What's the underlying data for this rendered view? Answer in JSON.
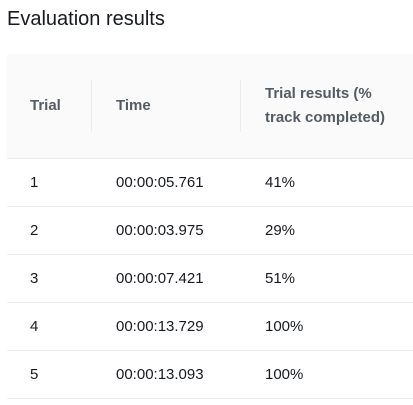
{
  "panel": {
    "title": "Evaluation results"
  },
  "table": {
    "headers": {
      "trial": "Trial",
      "time": "Time",
      "result": "Trial results (% track completed)"
    },
    "rows": [
      {
        "trial": "1",
        "time": "00:00:05.761",
        "result": "41%"
      },
      {
        "trial": "2",
        "time": "00:00:03.975",
        "result": "29%"
      },
      {
        "trial": "3",
        "time": "00:00:07.421",
        "result": "51%"
      },
      {
        "trial": "4",
        "time": "00:00:13.729",
        "result": "100%"
      },
      {
        "trial": "5",
        "time": "00:00:13.093",
        "result": "100%"
      }
    ]
  }
}
